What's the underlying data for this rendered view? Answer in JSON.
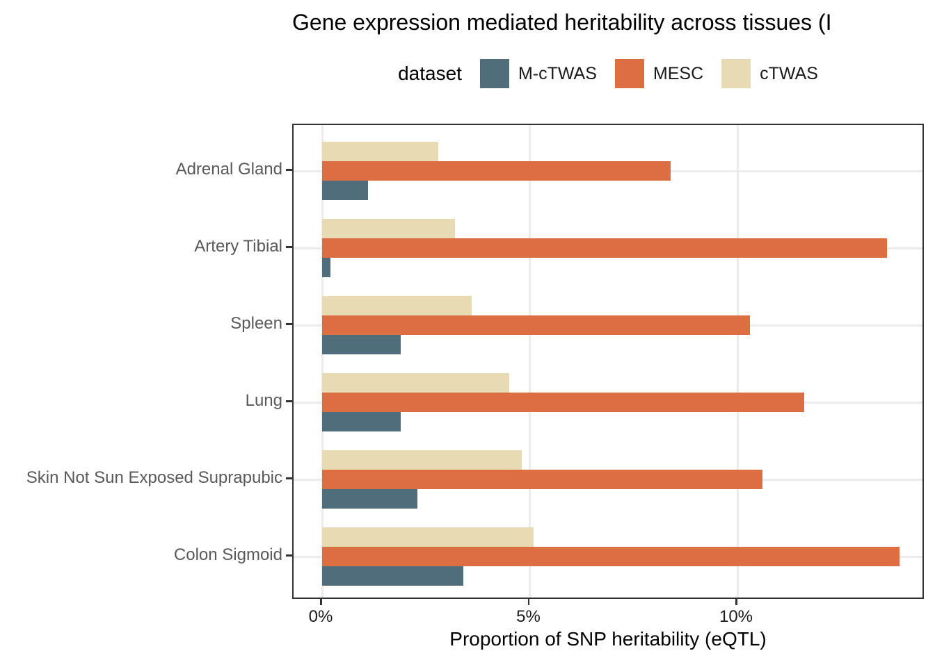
{
  "title": "Gene expression mediated heritability across tissues (I",
  "legend": {
    "title": "dataset",
    "items": [
      {
        "label": "M-cTWAS",
        "color": "#4F6D7A"
      },
      {
        "label": "MESC",
        "color": "#DD6E42"
      },
      {
        "label": "cTWAS",
        "color": "#E8DAB2"
      }
    ]
  },
  "colors": {
    "m_ctwas": "#4F6D7A",
    "mesc": "#DD6E42",
    "ctwas": "#E8DAB2",
    "panel_border": "#333333",
    "gridline": "#EBEBEB",
    "axis_text": "#595959",
    "tick_text": "#1A1A1A"
  },
  "chart_data": {
    "type": "bar",
    "orientation": "horizontal",
    "title": "Gene expression mediated heritability across tissues (I",
    "xlabel": "Proportion of SNP heritability (eQTL)",
    "ylabel": "",
    "legend_title": "dataset",
    "legend_position": "top",
    "grid": true,
    "categories": [
      "Adrenal Gland",
      "Artery Tibial",
      "Spleen",
      "Lung",
      "Skin Not Sun Exposed Suprapubic",
      "Colon Sigmoid"
    ],
    "series": [
      {
        "name": "M-cTWAS",
        "color": "#4F6D7A",
        "values": [
          1.1,
          0.2,
          1.9,
          1.9,
          2.3,
          3.4
        ]
      },
      {
        "name": "MESC",
        "color": "#DD6E42",
        "values": [
          8.4,
          13.6,
          10.3,
          11.6,
          10.6,
          13.9
        ]
      },
      {
        "name": "cTWAS",
        "color": "#E8DAB2",
        "values": [
          2.8,
          3.2,
          3.6,
          4.5,
          4.8,
          5.1
        ]
      }
    ],
    "x_ticks": [
      {
        "label": "0%",
        "value": 0
      },
      {
        "label": "5%",
        "value": 5
      },
      {
        "label": "10%",
        "value": 10
      }
    ],
    "xlim": [
      0,
      14.5
    ],
    "unit": "percent"
  }
}
